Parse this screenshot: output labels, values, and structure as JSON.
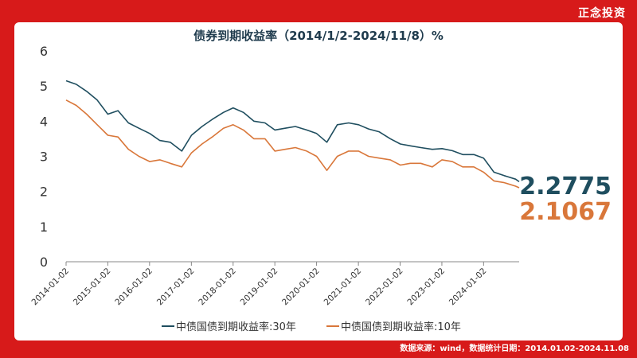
{
  "brand": "正念投资",
  "footer": "数据来源：wind，数据统计日期：2014.01.02-2024.11.08",
  "colors": {
    "frame": "#d71a1a",
    "series30": "#1f4e5f",
    "series10": "#d9773a"
  },
  "chart_data": {
    "type": "line",
    "title": "债券到期收益率（2014/1/2-2024/11/8）%",
    "ylim": [
      0,
      6
    ],
    "yticks": [
      "0",
      "1",
      "2",
      "3",
      "4",
      "5",
      "6"
    ],
    "xticks": [
      "2014-01-02",
      "2015-01-02",
      "2016-01-02",
      "2017-01-02",
      "2018-01-02",
      "2019-01-02",
      "2020-01-02",
      "2021-01-02",
      "2022-01-02",
      "2023-01-02",
      "2024-01-02"
    ],
    "grid": false,
    "legend_position": "bottom",
    "series": [
      {
        "name": "中债国债到期收益率:30年",
        "end_label": "2.2775",
        "x": [
          "2014-01-02",
          "2014-04-01",
          "2014-07-01",
          "2014-10-01",
          "2015-01-02",
          "2015-04-01",
          "2015-07-01",
          "2015-10-01",
          "2016-01-04",
          "2016-04-01",
          "2016-07-01",
          "2016-10-10",
          "2017-01-03",
          "2017-04-05",
          "2017-07-03",
          "2017-10-09",
          "2018-01-02",
          "2018-04-02",
          "2018-07-02",
          "2018-10-08",
          "2019-01-02",
          "2019-04-01",
          "2019-07-01",
          "2019-10-08",
          "2020-01-02",
          "2020-04-01",
          "2020-07-01",
          "2020-10-09",
          "2021-01-04",
          "2021-04-01",
          "2021-07-01",
          "2021-10-08",
          "2022-01-04",
          "2022-04-01",
          "2022-07-01",
          "2022-10-10",
          "2023-01-03",
          "2023-04-03",
          "2023-07-03",
          "2023-10-09",
          "2024-01-02",
          "2024-04-01",
          "2024-07-01",
          "2024-10-08",
          "2024-11-08"
        ],
        "values": [
          5.15,
          5.05,
          4.85,
          4.6,
          4.2,
          4.3,
          3.95,
          3.8,
          3.65,
          3.45,
          3.4,
          3.15,
          3.6,
          3.85,
          4.05,
          4.25,
          4.38,
          4.25,
          4.0,
          3.95,
          3.75,
          3.8,
          3.85,
          3.75,
          3.65,
          3.4,
          3.9,
          3.95,
          3.9,
          3.78,
          3.7,
          3.5,
          3.35,
          3.3,
          3.25,
          3.2,
          3.22,
          3.16,
          3.05,
          3.05,
          2.95,
          2.55,
          2.45,
          2.35,
          2.2775
        ]
      },
      {
        "name": "中债国债到期收益率:10年",
        "end_label": "2.1067",
        "x": [
          "2014-01-02",
          "2014-04-01",
          "2014-07-01",
          "2014-10-01",
          "2015-01-02",
          "2015-04-01",
          "2015-07-01",
          "2015-10-01",
          "2016-01-04",
          "2016-04-01",
          "2016-07-01",
          "2016-10-10",
          "2017-01-03",
          "2017-04-05",
          "2017-07-03",
          "2017-10-09",
          "2018-01-02",
          "2018-04-02",
          "2018-07-02",
          "2018-10-08",
          "2019-01-02",
          "2019-04-01",
          "2019-07-01",
          "2019-10-08",
          "2020-01-02",
          "2020-04-01",
          "2020-07-01",
          "2020-10-09",
          "2021-01-04",
          "2021-04-01",
          "2021-07-01",
          "2021-10-08",
          "2022-01-04",
          "2022-04-01",
          "2022-07-01",
          "2022-10-10",
          "2023-01-03",
          "2023-04-03",
          "2023-07-03",
          "2023-10-09",
          "2024-01-02",
          "2024-04-01",
          "2024-07-01",
          "2024-10-08",
          "2024-11-08"
        ],
        "values": [
          4.6,
          4.45,
          4.2,
          3.9,
          3.6,
          3.55,
          3.2,
          3.0,
          2.85,
          2.9,
          2.8,
          2.7,
          3.1,
          3.35,
          3.55,
          3.8,
          3.9,
          3.75,
          3.5,
          3.5,
          3.15,
          3.2,
          3.25,
          3.15,
          3.0,
          2.6,
          3.0,
          3.15,
          3.15,
          3.0,
          2.95,
          2.9,
          2.75,
          2.8,
          2.8,
          2.7,
          2.9,
          2.85,
          2.7,
          2.7,
          2.55,
          2.3,
          2.25,
          2.15,
          2.1067
        ]
      }
    ]
  }
}
